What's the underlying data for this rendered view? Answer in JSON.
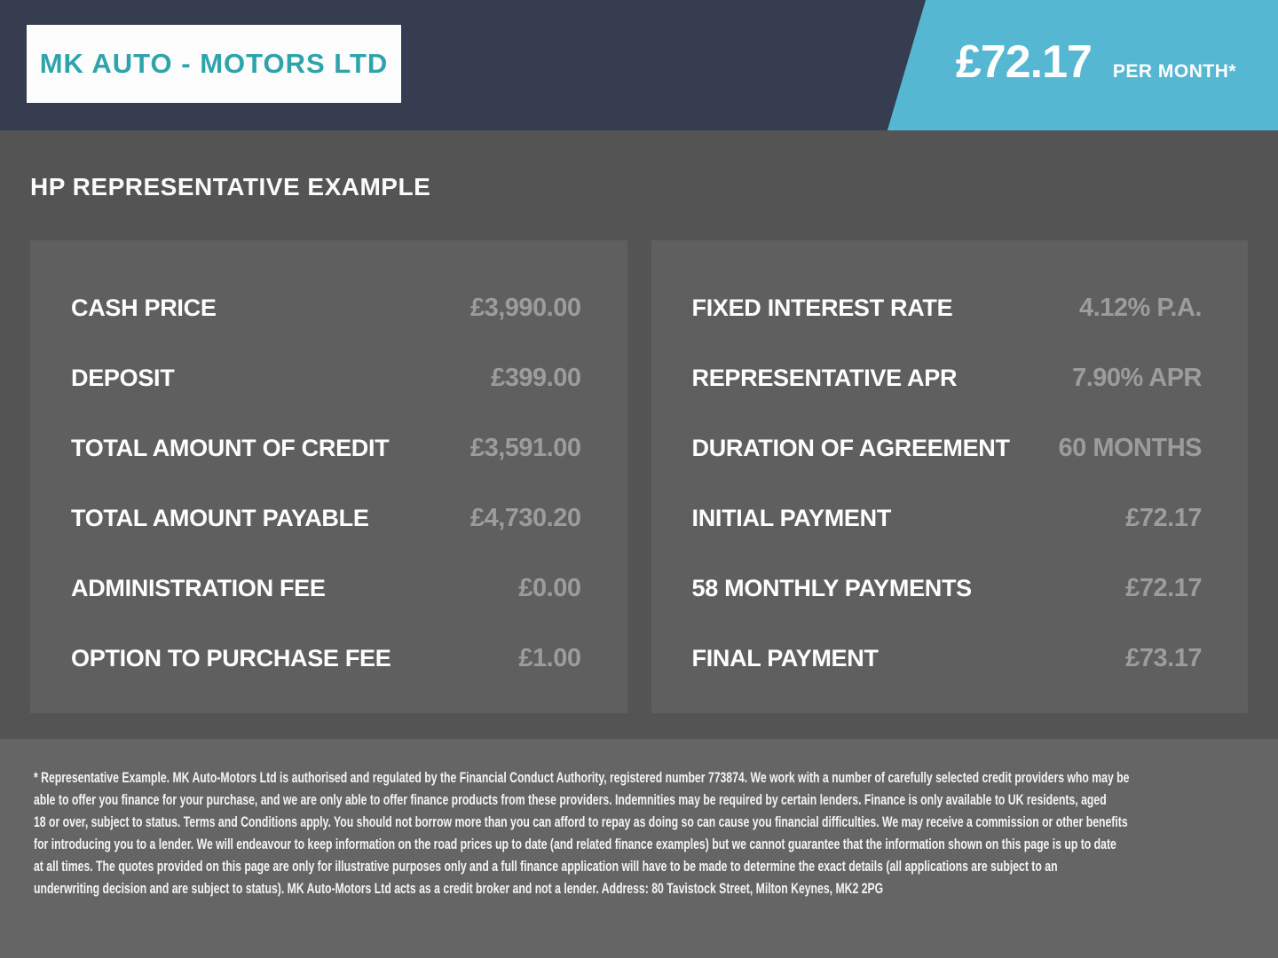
{
  "colors": {
    "header_bg": "#373d50",
    "accent_blue": "#55b7d2",
    "logo_teal": "#2da4ab",
    "main_bg": "#545454",
    "panel_bg": "#5f5f5f",
    "footer_bg": "#656565",
    "label_white": "#ffffff",
    "value_gray": "#9c9c9c"
  },
  "header": {
    "logo": "MK AUTO - MOTORS LTD",
    "monthly_price": "£72.17",
    "monthly_price_suffix": "PER MONTH*"
  },
  "main": {
    "title": "HP REPRESENTATIVE EXAMPLE",
    "left_panel": {
      "rows": [
        {
          "label": "CASH PRICE",
          "value": "£3,990.00"
        },
        {
          "label": "DEPOSIT",
          "value": "£399.00"
        },
        {
          "label": "TOTAL AMOUNT OF CREDIT",
          "value": "£3,591.00"
        },
        {
          "label": "TOTAL AMOUNT PAYABLE",
          "value": "£4,730.20"
        },
        {
          "label": "ADMINISTRATION FEE",
          "value": "£0.00"
        },
        {
          "label": "OPTION TO PURCHASE FEE",
          "value": "£1.00"
        }
      ]
    },
    "right_panel": {
      "rows": [
        {
          "label": "FIXED INTEREST RATE",
          "value": "4.12% P.A."
        },
        {
          "label": "REPRESENTATIVE APR",
          "value": "7.90% APR"
        },
        {
          "label": "DURATION OF AGREEMENT",
          "value": "60 MONTHS"
        },
        {
          "label": "INITIAL PAYMENT",
          "value": "£72.17"
        },
        {
          "label": "58 MONTHLY PAYMENTS",
          "value": "£72.17"
        },
        {
          "label": "FINAL PAYMENT",
          "value": "£73.17"
        }
      ]
    }
  },
  "footer": {
    "lines": [
      "* Representative Example. MK Auto-Motors Ltd is authorised and regulated by the Financial Conduct Authority, registered number 773874. We work with a number of carefully selected credit providers who may be",
      "able to offer you finance for your purchase, and we are only able to offer finance products from these providers. Indemnities may be required by certain lenders. Finance is only available to UK residents, aged",
      "18 or over, subject to status. Terms and Conditions apply. You should not borrow more than you can afford to repay as doing so can cause you financial difficulties. We may receive a commission or other benefits",
      "for introducing you to a lender. We will endeavour to keep information on the road prices up to date (and related finance examples) but we cannot guarantee that the information shown on this page is up to date",
      "at all times. The quotes provided on this page are only for illustrative purposes only and a full finance application will have to be made to determine the exact details (all applications are subject to an",
      "underwriting decision and are subject to status). MK Auto-Motors Ltd acts as a credit broker and not a lender. Address: 80 Tavistock Street, Milton Keynes, MK2 2PG"
    ]
  }
}
